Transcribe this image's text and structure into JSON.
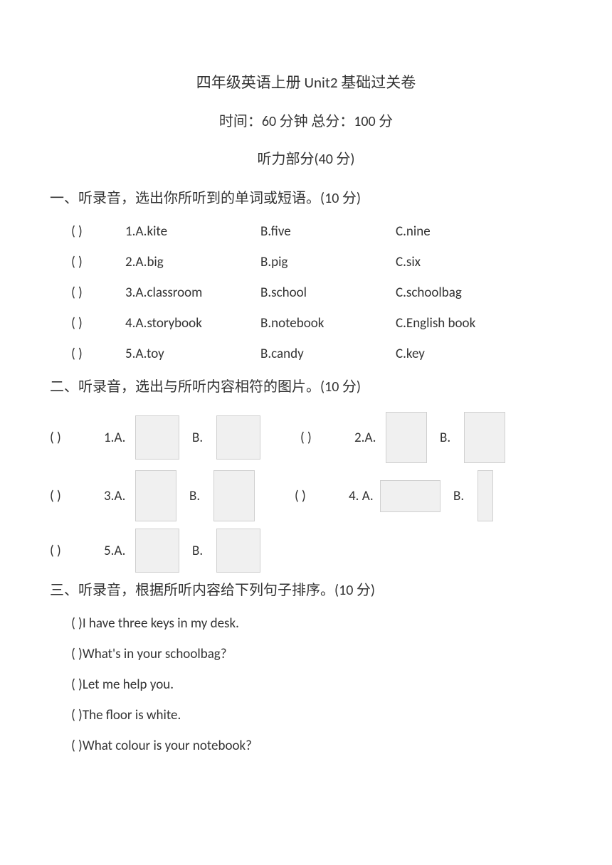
{
  "title": "四年级英语上册 Unit2 基础过关卷",
  "time_score": "时间：60 分钟   总分：100 分",
  "listening_header": "听力部分(40 分)",
  "section1": {
    "title": "一、听录音，选出你所听到的单词或短语。(10 分)",
    "rows": [
      {
        "paren": "(        )",
        "a": "1.A.kite",
        "b": "B.five",
        "c": "C.nine"
      },
      {
        "paren": "(        )",
        "a": "2.A.big",
        "b": "B.pig",
        "c": "C.six"
      },
      {
        "paren": "(        )",
        "a": "3.A.classroom",
        "b": "B.school",
        "c": "C.schoolbag"
      },
      {
        "paren": "(        )",
        "a": "4.A.storybook",
        "b": "B.notebook",
        "c": "C.English book"
      },
      {
        "paren": "(        )",
        "a": "5.A.toy",
        "b": "B.candy",
        "c": "C.key"
      }
    ]
  },
  "section2": {
    "title": "二、听录音，选出与所听内容相符的图片。(10 分)",
    "paren": "(        )",
    "labels": {
      "a1": "1.A.",
      "a2": "2.A.",
      "a3": "3.A.",
      "a4": "4. A.",
      "a5": "5.A.",
      "b": "B."
    }
  },
  "section3": {
    "title": "三、听录音，根据所听内容给下列句子排序。(10 分)",
    "paren": "(        )",
    "lines": [
      "I have three keys in my desk.",
      "What's in your schoolbag?",
      "Let me help you.",
      "The floor is white.",
      "What colour is your notebook?"
    ]
  }
}
